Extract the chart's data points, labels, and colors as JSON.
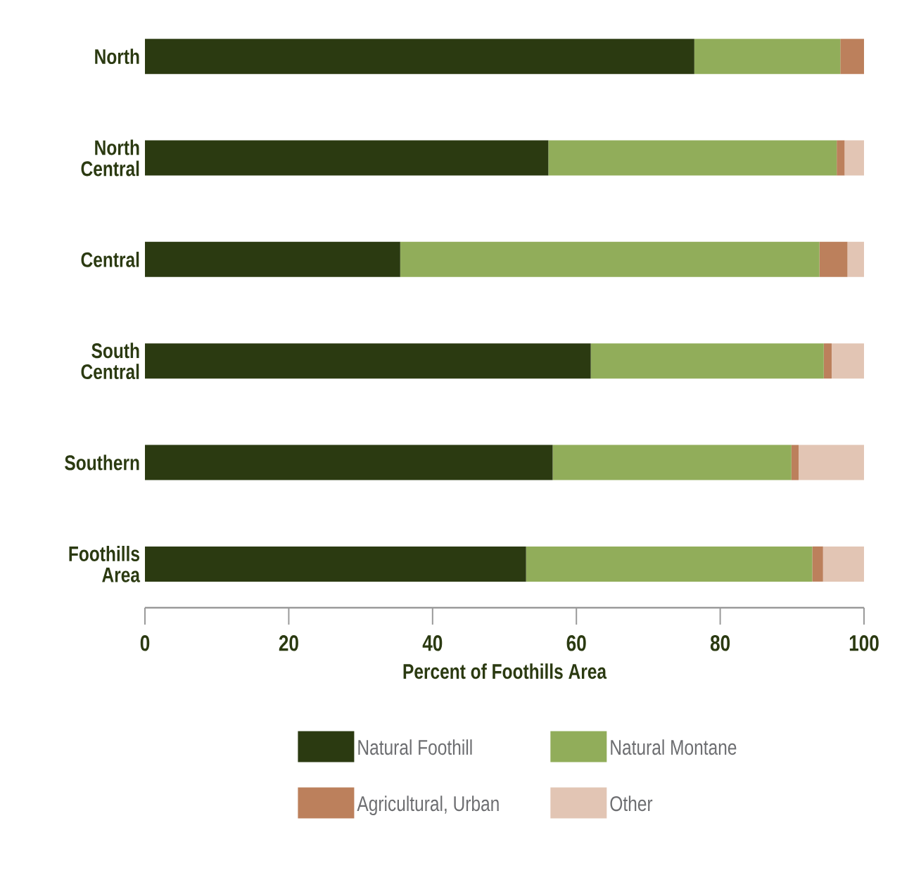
{
  "chart_data": {
    "type": "bar",
    "orientation": "horizontal",
    "stacked": true,
    "xlabel": "Percent of Foothills Area",
    "categories": [
      "North",
      "North Central",
      "Central",
      "South Central",
      "Southern",
      "Foothills Area"
    ],
    "series": [
      {
        "name": "Natural Foothill",
        "color": "#2b3a11",
        "values": [
          76.4,
          56.1,
          35.5,
          62.0,
          56.7,
          53.0
        ]
      },
      {
        "name": "Natural Montane",
        "color": "#91ad5a",
        "values": [
          20.3,
          40.1,
          58.3,
          32.4,
          33.2,
          39.8
        ]
      },
      {
        "name": "Agricultural, Urban",
        "color": "#bc805c",
        "values": [
          3.3,
          1.1,
          3.9,
          1.1,
          1.0,
          1.5
        ]
      },
      {
        "name": "Other",
        "color": "#e2c5b4",
        "values": [
          0,
          2.7,
          2.3,
          4.5,
          9.1,
          5.7
        ]
      }
    ],
    "xlim": [
      0,
      100
    ],
    "xticks": [
      0,
      20,
      40,
      60,
      80,
      100
    ],
    "legend": "bottom"
  }
}
